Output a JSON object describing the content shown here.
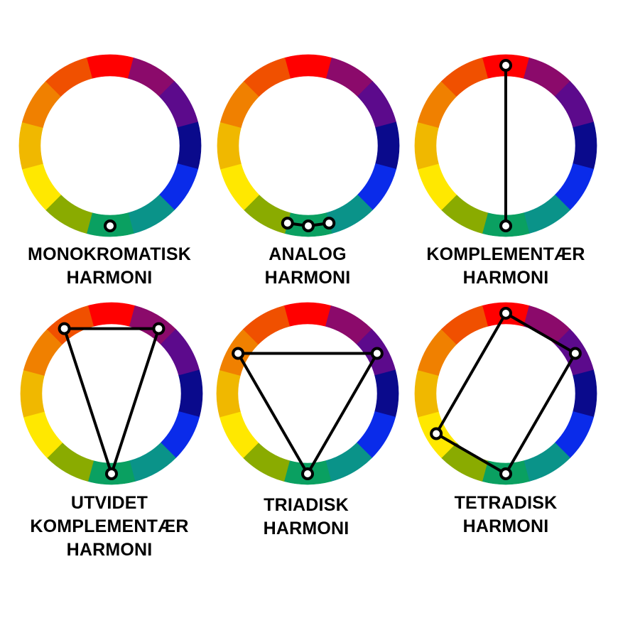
{
  "palette": [
    "#ff0000",
    "#8b0a6b",
    "#5c0a8c",
    "#0a0a8c",
    "#0a2bea",
    "#0a9389",
    "#0aa061",
    "#8aab00",
    "#ffe800",
    "#f0b800",
    "#f08000",
    "#f05000"
  ],
  "wheels": [
    {
      "id": "monokromatisk",
      "label_lines": [
        "MONOKROMATISK",
        "HARMONI"
      ],
      "markers": [
        6
      ],
      "connections": []
    },
    {
      "id": "analog",
      "label_lines": [
        "ANALOG",
        "HARMONI"
      ],
      "markers": [
        5.5,
        6,
        6.5
      ],
      "connections": [
        [
          0,
          1
        ],
        [
          1,
          2
        ]
      ]
    },
    {
      "id": "komplementaer",
      "label_lines": [
        "KOMPLEMENTÆR",
        "HARMONI"
      ],
      "markers": [
        0,
        6
      ],
      "connections": [
        [
          0,
          1
        ]
      ]
    },
    {
      "id": "utvidet-komplementaer",
      "label_lines": [
        "UTVIDET",
        "KOMPLEMENTÆR",
        "HARMONI"
      ],
      "markers": [
        10.8,
        1.2,
        6
      ],
      "connections": [
        [
          0,
          1
        ],
        [
          1,
          2
        ],
        [
          2,
          0
        ]
      ]
    },
    {
      "id": "triadisk",
      "label_lines": [
        "TRIADISK",
        "HARMONI"
      ],
      "markers": [
        2,
        6,
        10
      ],
      "connections": [
        [
          0,
          1
        ],
        [
          1,
          2
        ],
        [
          2,
          0
        ]
      ]
    },
    {
      "id": "tetradisk",
      "label_lines": [
        "TETRADISK",
        "HARMONI"
      ],
      "markers": [
        0,
        2,
        6,
        8
      ],
      "connections": [
        [
          0,
          1
        ],
        [
          1,
          2
        ],
        [
          2,
          3
        ],
        [
          3,
          0
        ]
      ]
    }
  ]
}
